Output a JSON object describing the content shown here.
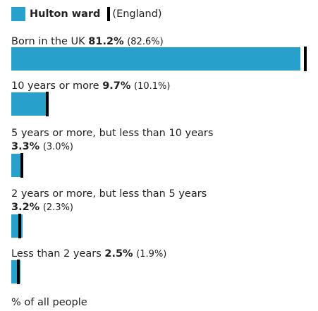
{
  "legend": {
    "area_label": "Hulton ward",
    "comparison_label": "(England)"
  },
  "colors": {
    "bar": "#27a0cc",
    "comparison": "#000000"
  },
  "chart_data": {
    "type": "bar",
    "orientation": "horizontal",
    "categories": [
      "Born in the UK",
      "10 years or more",
      "5 years or more, but less than 10 years",
      "2 years or more, but less than 5 years",
      "Less than 2 years"
    ],
    "series": [
      {
        "name": "Hulton ward",
        "values": [
          81.2,
          9.7,
          3.3,
          3.2,
          2.5
        ]
      },
      {
        "name": "England",
        "values": [
          82.6,
          10.1,
          3.0,
          2.3,
          1.9
        ]
      }
    ],
    "value_labels": [
      "81.2%",
      "9.7%",
      "3.3%",
      "3.2%",
      "2.5%"
    ],
    "comparison_labels": [
      "(82.6%)",
      "(10.1%)",
      "(3.0%)",
      "(2.3%)",
      "(1.9%)"
    ],
    "xlabel": "% of all people",
    "xlim": [
      0,
      100
    ]
  }
}
